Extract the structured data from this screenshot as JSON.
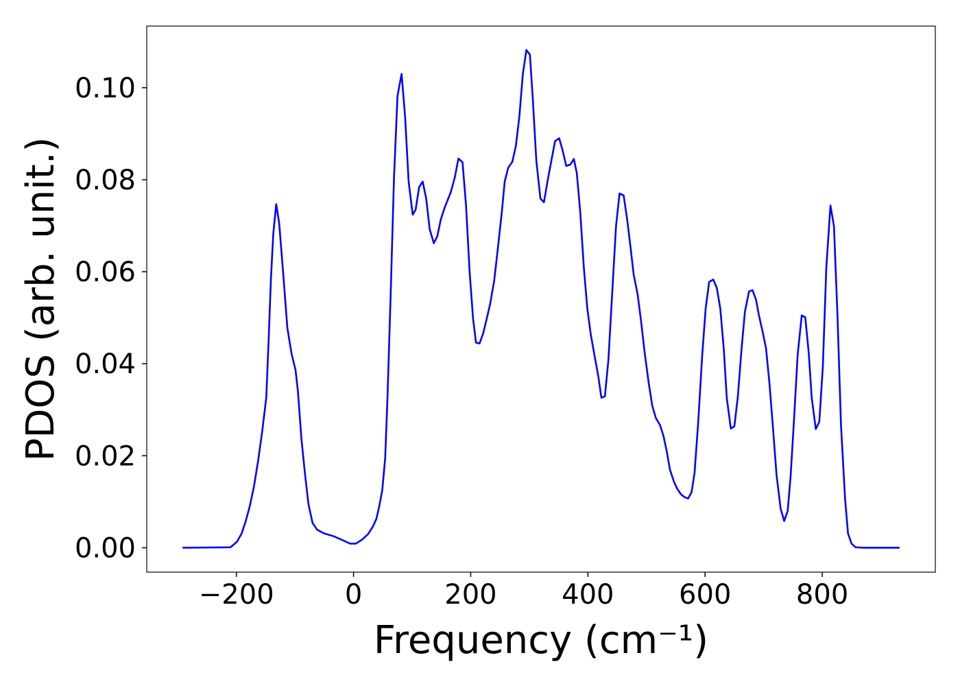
{
  "chart_data": {
    "type": "line",
    "xlabel": "Frequency (cm⁻¹)",
    "ylabel": "PDOS (arb. unit.)",
    "xlim": [
      -353,
      993
    ],
    "ylim": [
      -0.0053,
      0.1134
    ],
    "xticks": [
      {
        "value": -200,
        "label": "−200"
      },
      0,
      200,
      400,
      600,
      800
    ],
    "yticks": [
      {
        "value": 0,
        "label": "0.00"
      },
      {
        "value": 0.02,
        "label": "0.02"
      },
      {
        "value": 0.04,
        "label": "0.04"
      },
      {
        "value": 0.06,
        "label": "0.06"
      },
      {
        "value": 0.08,
        "label": "0.08"
      },
      {
        "value": 0.1,
        "label": "0.10"
      }
    ],
    "grid": false,
    "x": [
      -292,
      -210,
      -199,
      -191,
      -184,
      -177,
      -170,
      -163,
      -156,
      -149,
      -145,
      -141,
      -137,
      -132,
      -127,
      -120,
      -113,
      -106,
      -99,
      -95,
      -89,
      -83,
      -77,
      -70,
      -62,
      -50,
      -34,
      -18,
      -6,
      4,
      15,
      25,
      33,
      39,
      44,
      49,
      54,
      58,
      63,
      69,
      75,
      82,
      88,
      94,
      101,
      106,
      112,
      118,
      124,
      130,
      137,
      143,
      149,
      156,
      166,
      173,
      179,
      186,
      192,
      198,
      204,
      209,
      215,
      221,
      227,
      233,
      240,
      246,
      253,
      258,
      264,
      271,
      277,
      283,
      289,
      295,
      301,
      306,
      312,
      319,
      325,
      331,
      338,
      344,
      351,
      357,
      363,
      370,
      376,
      381,
      387,
      393,
      399,
      405,
      412,
      418,
      423,
      429,
      435,
      442,
      448,
      454,
      461,
      467,
      473,
      478,
      485,
      491,
      497,
      504,
      510,
      516,
      523,
      529,
      535,
      540,
      547,
      553,
      559,
      565,
      571,
      577,
      582,
      588,
      595,
      601,
      607,
      614,
      620,
      626,
      632,
      637,
      644,
      650,
      656,
      662,
      668,
      675,
      681,
      687,
      692,
      698,
      704,
      710,
      716,
      722,
      729,
      735,
      741,
      746,
      752,
      758,
      765,
      771,
      777,
      782,
      789,
      795,
      801,
      807,
      814,
      820,
      826,
      832,
      839,
      844,
      850,
      857,
      871,
      932
    ],
    "series": [
      {
        "color": "#0000ff",
        "values": [
          0,
          0.0001,
          0.0013,
          0.0031,
          0.0058,
          0.0091,
          0.0133,
          0.0188,
          0.0252,
          0.0326,
          0.045,
          0.0585,
          0.0683,
          0.0747,
          0.0706,
          0.0595,
          0.0478,
          0.0423,
          0.0386,
          0.0341,
          0.0237,
          0.0162,
          0.0095,
          0.0054,
          0.0039,
          0.0031,
          0.0025,
          0.0016,
          0.0009,
          0.0009,
          0.0018,
          0.003,
          0.0046,
          0.0063,
          0.0091,
          0.0125,
          0.0195,
          0.0329,
          0.0535,
          0.0803,
          0.0982,
          0.103,
          0.0937,
          0.0796,
          0.0724,
          0.0735,
          0.0784,
          0.0796,
          0.0759,
          0.0692,
          0.0662,
          0.0677,
          0.0714,
          0.0741,
          0.0773,
          0.0806,
          0.0846,
          0.0838,
          0.0744,
          0.0602,
          0.0498,
          0.0446,
          0.0444,
          0.0465,
          0.0496,
          0.0529,
          0.058,
          0.0647,
          0.0729,
          0.0796,
          0.0826,
          0.0839,
          0.0873,
          0.0937,
          0.103,
          0.1082,
          0.1072,
          0.0975,
          0.0841,
          0.0759,
          0.0751,
          0.0796,
          0.0844,
          0.0884,
          0.089,
          0.0863,
          0.083,
          0.0833,
          0.0845,
          0.0815,
          0.0729,
          0.061,
          0.052,
          0.0463,
          0.0413,
          0.0371,
          0.0326,
          0.0329,
          0.0408,
          0.0565,
          0.0699,
          0.077,
          0.0766,
          0.0714,
          0.0651,
          0.0595,
          0.055,
          0.049,
          0.0423,
          0.0356,
          0.0308,
          0.0282,
          0.0267,
          0.0243,
          0.0207,
          0.017,
          0.0143,
          0.0127,
          0.0116,
          0.011,
          0.0107,
          0.0121,
          0.0162,
          0.0267,
          0.0416,
          0.052,
          0.0578,
          0.0583,
          0.0565,
          0.052,
          0.0431,
          0.0326,
          0.0259,
          0.0264,
          0.0329,
          0.0428,
          0.0513,
          0.0557,
          0.056,
          0.0539,
          0.0505,
          0.0471,
          0.0434,
          0.0356,
          0.0259,
          0.0158,
          0.0085,
          0.0058,
          0.008,
          0.0155,
          0.0282,
          0.0419,
          0.0505,
          0.0501,
          0.0423,
          0.0326,
          0.0258,
          0.0274,
          0.0393,
          0.061,
          0.0744,
          0.0699,
          0.0505,
          0.0267,
          0.0106,
          0.0031,
          0.0009,
          0.0001,
          0,
          0
        ]
      }
    ]
  }
}
